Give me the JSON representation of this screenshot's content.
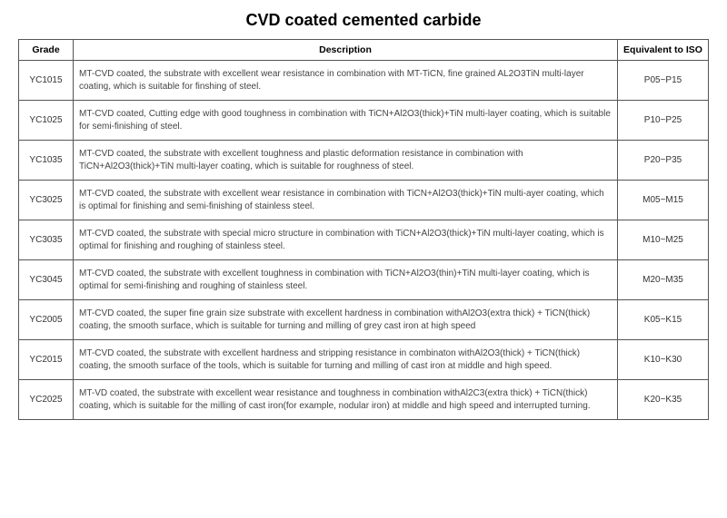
{
  "title": "CVD coated cemented carbide",
  "columns": {
    "grade": "Grade",
    "description": "Description",
    "iso": "Equivalent to ISO"
  },
  "rows": [
    {
      "grade": "YC1015",
      "description": "MT-CVD coated, the substrate with excellent wear resistance in combination with MT-TiCN, fine grained AL2O3TiN multi-layer coating, which is suitable for finshing of steel.",
      "iso": "P05~P15"
    },
    {
      "grade": "YC1025",
      "description": "MT-CVD coated, Cutting edge with good toughness in combination with TiCN+Al2O3(thick)+TiN multi-layer coating, which is suitable for semi-finishing of steel.",
      "iso": "P10~P25"
    },
    {
      "grade": "YC1035",
      "description": "MT-CVD coated, the substrate with excellent toughness and plastic deformation resistance in combination with TiCN+Al2O3(thick)+TiN multi-layer coating, which is suitable for roughness of steel.",
      "iso": "P20~P35"
    },
    {
      "grade": "YC3025",
      "description": "MT-CVD coated, the substrate with excellent wear resistance in combination with TiCN+Al2O3(thick)+TiN multi-ayer coating, which is optimal for finishing and semi-finishing of stainless steel.",
      "iso": "M05~M15"
    },
    {
      "grade": "YC3035",
      "description": "MT-CVD coated, the substrate with special micro structure in combination with TiCN+Al2O3(thick)+TiN multi-layer coating, which is optimal for finishing and roughing of stainless steel.",
      "iso": "M10~M25"
    },
    {
      "grade": "YC3045",
      "description": "MT-CVD coated, the substrate with excellent toughness in combination with TiCN+Al2O3(thin)+TiN multi-layer coating, which is optimal for semi-finishing and roughing of stainless steel.",
      "iso": "M20~M35"
    },
    {
      "grade": "YC2005",
      "description": "MT-CVD coated, the super fine grain size substrate with excellent hardness in combination withAl2O3(extra thick) + TiCN(thick) coating, the smooth surface, which is suitable for turning and milling of grey cast iron at high speed",
      "iso": "K05~K15"
    },
    {
      "grade": "YC2015",
      "description": "MT-CVD coated, the substrate with excellent hardness and stripping resistance in combinaton withAl2O3(thick) + TiCN(thick) coating, the smooth surface of the tools, which is suitable for turning and milling of cast iron at middle and high speed.",
      "iso": "K10~K30"
    },
    {
      "grade": "YC2025",
      "description": "MT-VD coated, the substrate with excellent wear resistance and toughness in combination withAl2C3(extra thick) + TiCN(thick) coating,  which is suitable for the milling of cast iron(for example, nodular iron) at middle and high speed and interrupted turning.",
      "iso": "K20~K35"
    }
  ]
}
